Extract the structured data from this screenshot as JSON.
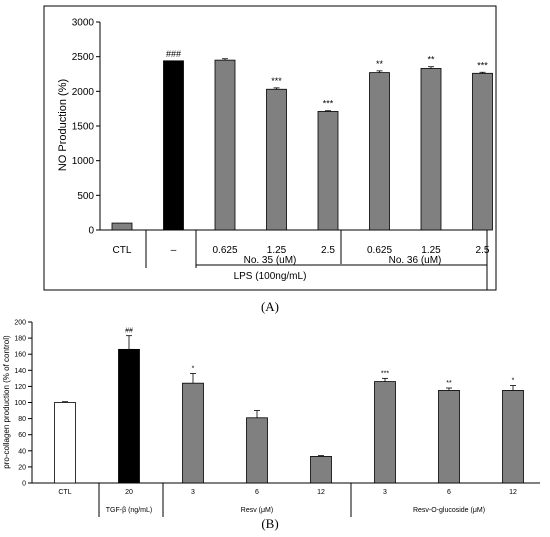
{
  "panels": [
    {
      "caption": "(A)",
      "chart_data": {
        "type": "bar",
        "title": "",
        "ylabel": "NO Production (%)",
        "ylim": [
          0,
          3000
        ],
        "yticks": [
          0,
          500,
          1000,
          1500,
          2000,
          2500,
          3000
        ],
        "grid": false,
        "bar_labels": [
          "CTL",
          "–",
          "0.625",
          "1.25",
          "2.5",
          "0.625",
          "1.25",
          "2.5"
        ],
        "values": [
          100,
          2440,
          2450,
          2030,
          1710,
          2270,
          2330,
          2260
        ],
        "errors": [
          0,
          0,
          20,
          20,
          10,
          25,
          25,
          15
        ],
        "colors": [
          "#808080",
          "#000000",
          "#808080",
          "#808080",
          "#808080",
          "#808080",
          "#808080",
          "#808080"
        ],
        "significance": [
          "",
          "###",
          "",
          "***",
          "***",
          "**",
          "**",
          "***"
        ],
        "group_labels": [
          "No. 35 (uM)",
          "No. 36 (uM)"
        ],
        "condition_label": "LPS (100ng/mL)"
      }
    },
    {
      "caption": "(B)",
      "chart_data": {
        "type": "bar",
        "title": "",
        "ylabel": "pro-collagen production (% of control)",
        "ylim": [
          0,
          200
        ],
        "yticks": [
          0,
          20,
          40,
          60,
          80,
          100,
          120,
          140,
          160,
          180,
          200
        ],
        "grid": false,
        "bar_labels": [
          "CTL",
          "20",
          "3",
          "6",
          "12",
          "3",
          "6",
          "12"
        ],
        "values": [
          100,
          166,
          124,
          81,
          33,
          126,
          115,
          115
        ],
        "errors": [
          1,
          17,
          12,
          9,
          1,
          4,
          3,
          6
        ],
        "colors": [
          "#ffffff",
          "#000000",
          "#808080",
          "#808080",
          "#808080",
          "#808080",
          "#808080",
          "#808080"
        ],
        "significance": [
          "",
          "##",
          "*",
          "",
          "",
          "***",
          "**",
          "*"
        ],
        "group_labels": [
          "TGF-β (ng/mL)",
          "Resv (μM)",
          "Resv-O-glucoside (μM)"
        ]
      }
    }
  ]
}
